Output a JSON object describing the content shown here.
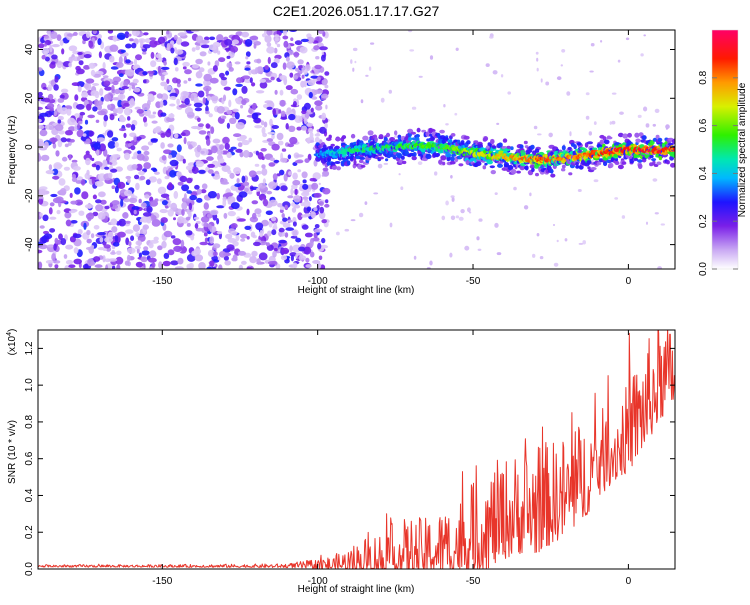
{
  "title": "C2E1.2026.051.17.17.G27",
  "chart_data": [
    {
      "type": "heatmap",
      "xlabel": "Height of straight line (km)",
      "ylabel": "Frequency (Hz)",
      "xlim": [
        -190,
        15
      ],
      "ylim": [
        -50,
        48
      ],
      "xticks": [
        -150,
        -100,
        -50,
        0
      ],
      "yticks": [
        -40,
        -20,
        0,
        20,
        40
      ],
      "colorbar": {
        "label": "Normalized spectral amplitude",
        "range": [
          0,
          1
        ],
        "ticks": [
          "0.0",
          "0.2",
          "0.4",
          "0.6",
          "0.8"
        ],
        "tick_values": [
          0.0,
          0.2,
          0.4,
          0.6,
          0.8
        ],
        "colors": [
          "#ffffff",
          "#c9a8f3",
          "#7a1fe8",
          "#1e14ff",
          "#00b8ff",
          "#00e8b0",
          "#2ef000",
          "#d8f000",
          "#ff9a00",
          "#ff1a00",
          "#ff0066"
        ]
      },
      "ridge": {
        "x": [
          -100,
          -95,
          -90,
          -85,
          -80,
          -75,
          -70,
          -65,
          -60,
          -55,
          -50,
          -45,
          -40,
          -35,
          -30,
          -25,
          -20,
          -15,
          -10,
          -5,
          0,
          5,
          10,
          15
        ],
        "y": [
          -3,
          -2.5,
          -1.5,
          -1,
          -0.5,
          0,
          0.5,
          0.5,
          0,
          -1,
          -2.5,
          -3.5,
          -4,
          -4.5,
          -5,
          -5,
          -4.5,
          -3.5,
          -2.5,
          -2,
          -1,
          -1,
          -1.5,
          -1
        ],
        "amplitude": [
          0.35,
          0.42,
          0.48,
          0.5,
          0.5,
          0.52,
          0.55,
          0.55,
          0.55,
          0.6,
          0.65,
          0.7,
          0.75,
          0.8,
          0.85,
          0.82,
          0.8,
          0.82,
          0.86,
          0.88,
          0.9,
          0.92,
          0.9,
          0.88
        ]
      },
      "noise_region": {
        "x_range": [
          -190,
          -100
        ],
        "amplitude_range": [
          0.05,
          0.3
        ]
      }
    },
    {
      "type": "line",
      "xlabel": "Height of straight line (km)",
      "ylabel": "SNR (10 * v/v)",
      "scale_label_base": "(x10",
      "scale_label_exp": "4",
      "scale_label_close": ")",
      "xlim": [
        -190,
        15
      ],
      "ylim": [
        0,
        1.3
      ],
      "xticks": [
        -150,
        -100,
        -50,
        0
      ],
      "yticks": [
        "0.0",
        "0.2",
        "0.4",
        "0.6",
        "0.8",
        "1.0",
        "1.2"
      ],
      "ytick_values": [
        0,
        0.2,
        0.4,
        0.6,
        0.8,
        1.0,
        1.2
      ],
      "series": [
        {
          "name": "SNR",
          "color": "#e8352a",
          "envelope": {
            "x": [
              -190,
              -150,
              -110,
              -100,
              -95,
              -90,
              -85,
              -80,
              -75,
              -70,
              -65,
              -60,
              -55,
              -50,
              -45,
              -40,
              -35,
              -30,
              -25,
              -20,
              -15,
              -10,
              -5,
              0,
              5,
              10,
              15
            ],
            "base": [
              0.015,
              0.015,
              0.015,
              0.02,
              0.02,
              0.03,
              0.04,
              0.05,
              0.06,
              0.06,
              0.08,
              0.1,
              0.12,
              0.15,
              0.2,
              0.25,
              0.28,
              0.3,
              0.33,
              0.38,
              0.45,
              0.55,
              0.62,
              0.7,
              0.85,
              1.0,
              1.05
            ],
            "amp": [
              0.01,
              0.01,
              0.015,
              0.04,
              0.06,
              0.1,
              0.15,
              0.18,
              0.22,
              0.25,
              0.22,
              0.25,
              0.3,
              0.35,
              0.4,
              0.4,
              0.4,
              0.45,
              0.4,
              0.4,
              0.4,
              0.35,
              0.3,
              0.35,
              0.4,
              0.4,
              0.3
            ]
          }
        }
      ]
    }
  ]
}
